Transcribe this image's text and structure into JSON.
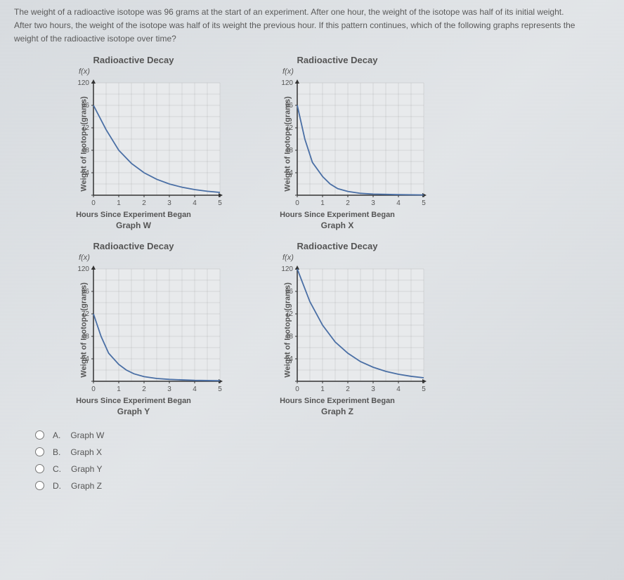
{
  "question": {
    "line1": "The weight of a radioactive isotope was 96 grams at the start of an experiment. After one hour, the weight of the isotope was half of its initial weight.",
    "line2": "After two hours, the weight of the isotope was half of its weight the previous hour. If this pattern continues, which of the following graphs represents the",
    "line3": "weight of the radioactive isotope over time?"
  },
  "charts": [
    {
      "title": "Radioactive Decay",
      "fx": "f(x)",
      "y_label": "Weight of Isotope (grams)",
      "x_label": "Hours Since Experiment Began",
      "name": "Graph W",
      "y_ticks": [
        0,
        24,
        48,
        72,
        96,
        120
      ],
      "x_ticks": [
        0,
        1,
        2,
        3,
        4,
        5
      ],
      "y_max": 120,
      "x_max": 5,
      "curve": [
        [
          0,
          96
        ],
        [
          0.5,
          70
        ],
        [
          1,
          48
        ],
        [
          1.5,
          34
        ],
        [
          2,
          24
        ],
        [
          2.5,
          17
        ],
        [
          3,
          12
        ],
        [
          3.5,
          8.5
        ],
        [
          4,
          6
        ],
        [
          4.5,
          4.2
        ],
        [
          5,
          3
        ]
      ],
      "curve_color": "#4a6fa5",
      "grid_color": "#999",
      "bg": "#e8eaec"
    },
    {
      "title": "Radioactive Decay",
      "fx": "f(x)",
      "y_label": "Weight of Isotope (grams)",
      "x_label": "Hours Since Experiment Began",
      "name": "Graph X",
      "y_ticks": [
        0,
        24,
        48,
        72,
        96,
        120
      ],
      "x_ticks": [
        0,
        1,
        2,
        3,
        4,
        5
      ],
      "y_max": 120,
      "x_max": 5,
      "curve": [
        [
          0,
          96
        ],
        [
          0.3,
          60
        ],
        [
          0.6,
          35
        ],
        [
          1,
          20
        ],
        [
          1.3,
          12
        ],
        [
          1.6,
          7
        ],
        [
          2,
          4
        ],
        [
          2.5,
          2
        ],
        [
          3,
          1.2
        ],
        [
          4,
          0.6
        ],
        [
          5,
          0.3
        ]
      ],
      "curve_color": "#4a6fa5",
      "grid_color": "#999",
      "bg": "#e8eaec"
    },
    {
      "title": "Radioactive Decay",
      "fx": "f(x)",
      "y_label": "Weight of Isotope (grams)",
      "x_label": "Hours Since Experiment Began",
      "name": "Graph Y",
      "y_ticks": [
        0,
        24,
        48,
        72,
        96,
        120
      ],
      "x_ticks": [
        0,
        1,
        2,
        3,
        4,
        5
      ],
      "y_max": 120,
      "x_max": 5,
      "curve": [
        [
          0,
          72
        ],
        [
          0.3,
          48
        ],
        [
          0.6,
          30
        ],
        [
          1,
          18
        ],
        [
          1.3,
          12
        ],
        [
          1.6,
          8
        ],
        [
          2,
          5
        ],
        [
          2.5,
          3
        ],
        [
          3,
          2
        ],
        [
          4,
          1
        ],
        [
          5,
          0.6
        ]
      ],
      "curve_color": "#4a6fa5",
      "grid_color": "#999",
      "bg": "#e8eaec"
    },
    {
      "title": "Radioactive Decay",
      "fx": "f(x)",
      "y_label": "Weight of Isotope (grams)",
      "x_label": "Hours Since Experiment Began",
      "name": "Graph Z",
      "y_ticks": [
        0,
        24,
        48,
        72,
        96,
        120
      ],
      "x_ticks": [
        0,
        1,
        2,
        3,
        4,
        5
      ],
      "y_max": 120,
      "x_max": 5,
      "curve": [
        [
          0,
          120
        ],
        [
          0.5,
          85
        ],
        [
          1,
          60
        ],
        [
          1.5,
          42
        ],
        [
          2,
          30
        ],
        [
          2.5,
          21
        ],
        [
          3,
          15
        ],
        [
          3.5,
          10.6
        ],
        [
          4,
          7.5
        ],
        [
          4.5,
          5.3
        ],
        [
          5,
          3.75
        ]
      ],
      "curve_color": "#4a6fa5",
      "grid_color": "#999",
      "bg": "#e8eaec"
    }
  ],
  "options": [
    {
      "letter": "A.",
      "label": "Graph W"
    },
    {
      "letter": "B.",
      "label": "Graph X"
    },
    {
      "letter": "C.",
      "label": "Graph Y"
    },
    {
      "letter": "D.",
      "label": "Graph Z"
    }
  ],
  "plot": {
    "width": 180,
    "height": 160
  }
}
